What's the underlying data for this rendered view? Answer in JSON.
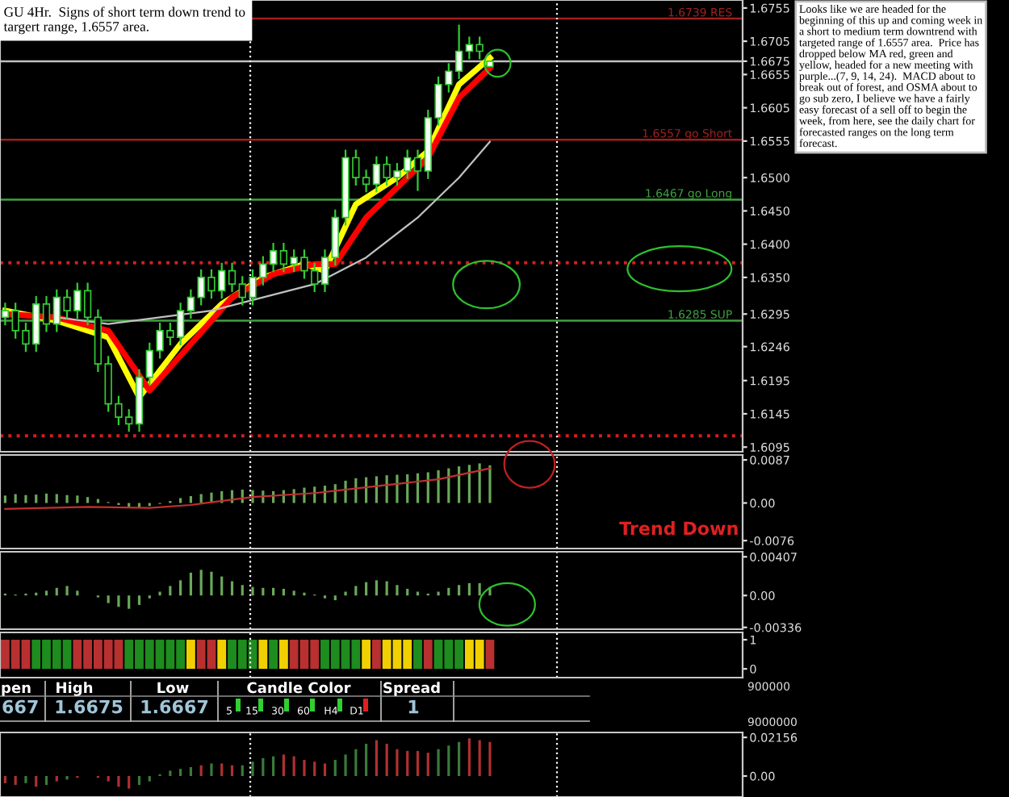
{
  "chart_data": [
    {
      "type": "candlestick",
      "categories": [
        null,
        null,
        null,
        null,
        null,
        null,
        null,
        null,
        null,
        null,
        null,
        null,
        null,
        null,
        null,
        null,
        null,
        null,
        null,
        null,
        null,
        null,
        null,
        null,
        null,
        null,
        null,
        null,
        null,
        null,
        null,
        null,
        null,
        null,
        null,
        null,
        null,
        null,
        null,
        null,
        null,
        null,
        null,
        null,
        null,
        null,
        null,
        null,
        null,
        null,
        null,
        null,
        null,
        null,
        null,
        null,
        null,
        null,
        null,
        null,
        null,
        null,
        null,
        null,
        null,
        null,
        null,
        null,
        null,
        null,
        null,
        null
      ],
      "ohlc": [
        [
          1.629,
          1.6312,
          1.6278,
          1.63
        ],
        [
          1.63,
          1.6312,
          1.6258,
          1.627
        ],
        [
          1.627,
          1.6282,
          1.6238,
          1.625
        ],
        [
          1.625,
          1.6322,
          1.6238,
          1.631
        ],
        [
          1.631,
          1.6322,
          1.6268,
          1.628
        ],
        [
          1.628,
          1.6332,
          1.6268,
          1.632
        ],
        [
          1.632,
          1.6332,
          1.6288,
          1.63
        ],
        [
          1.63,
          1.6342,
          1.6288,
          1.633
        ],
        [
          1.633,
          1.6342,
          1.6278,
          1.629
        ],
        [
          1.629,
          1.6302,
          1.6208,
          1.622
        ],
        [
          1.622,
          1.6232,
          1.6148,
          1.616
        ],
        [
          1.616,
          1.6172,
          1.6128,
          1.614
        ],
        [
          1.614,
          1.6152,
          1.6118,
          1.613
        ],
        [
          1.613,
          1.6212,
          1.6118,
          1.62
        ],
        [
          1.62,
          1.6252,
          1.6188,
          1.624
        ],
        [
          1.624,
          1.6282,
          1.6228,
          1.627
        ],
        [
          1.627,
          1.6282,
          1.6248,
          1.626
        ],
        [
          1.626,
          1.6312,
          1.6248,
          1.63
        ],
        [
          1.63,
          1.6332,
          1.6288,
          1.632
        ],
        [
          1.632,
          1.6362,
          1.6308,
          1.635
        ],
        [
          1.635,
          1.6362,
          1.6318,
          1.633
        ],
        [
          1.633,
          1.6372,
          1.6318,
          1.636
        ],
        [
          1.636,
          1.6372,
          1.6328,
          1.634
        ],
        [
          1.634,
          1.6352,
          1.6308,
          1.632
        ],
        [
          1.632,
          1.6362,
          1.6308,
          1.635
        ],
        [
          1.635,
          1.6382,
          1.6338,
          1.637
        ],
        [
          1.637,
          1.6402,
          1.6358,
          1.639
        ],
        [
          1.639,
          1.6402,
          1.6358,
          1.637
        ],
        [
          1.637,
          1.6392,
          1.6358,
          1.638
        ],
        [
          1.638,
          1.6392,
          1.6348,
          1.636
        ],
        [
          1.636,
          1.6372,
          1.6328,
          1.634
        ],
        [
          1.634,
          1.6392,
          1.6328,
          1.638
        ],
        [
          1.638,
          1.6452,
          1.6368,
          1.644
        ],
        [
          1.644,
          1.6542,
          1.6428,
          1.653
        ],
        [
          1.653,
          1.6542,
          1.6488,
          1.65
        ],
        [
          1.65,
          1.6512,
          1.6478,
          1.649
        ],
        [
          1.649,
          1.6532,
          1.6478,
          1.652
        ],
        [
          1.652,
          1.6532,
          1.6488,
          1.65
        ],
        [
          1.65,
          1.6522,
          1.6488,
          1.651
        ],
        [
          1.651,
          1.6542,
          1.6498,
          1.653
        ],
        [
          1.653,
          1.6542,
          1.648,
          1.651
        ],
        [
          1.651,
          1.6602,
          1.6498,
          1.659
        ],
        [
          1.659,
          1.6652,
          1.6578,
          1.664
        ],
        [
          1.664,
          1.6672,
          1.6628,
          1.666
        ],
        [
          1.666,
          1.673,
          1.6648,
          1.669
        ],
        [
          1.669,
          1.6712,
          1.6678,
          1.67
        ],
        [
          1.67,
          1.6712,
          1.6678,
          1.669
        ],
        [
          1.6667,
          1.6675,
          1.6667,
          1.6675
        ],
        null,
        null,
        null,
        null,
        null,
        null,
        null,
        null,
        null,
        null,
        null,
        null,
        null,
        null,
        null,
        null,
        null,
        null,
        null,
        null,
        null,
        null,
        null,
        null
      ],
      "series": [
        {
          "type": "line",
          "color": "#ffff00",
          "values": [
            1.63,
            null,
            null,
            null,
            null,
            1.6285,
            null,
            null,
            null,
            null,
            1.626,
            null,
            null,
            1.617,
            null,
            null,
            null,
            1.625,
            null,
            null,
            null,
            1.631,
            null,
            null,
            null,
            1.635,
            null,
            null,
            null,
            1.637,
            null,
            1.636,
            null,
            null,
            1.646,
            null,
            null,
            null,
            1.65,
            null,
            null,
            1.654,
            null,
            null,
            1.664,
            null,
            null,
            1.668,
            null,
            null,
            null,
            null,
            null,
            null,
            null,
            null,
            null,
            null,
            null,
            null,
            null,
            null,
            null,
            null,
            null,
            null,
            null,
            null,
            null,
            null,
            null,
            null
          ]
        },
        {
          "type": "line",
          "color": "#ff0000",
          "values": [
            1.6295,
            null,
            null,
            null,
            null,
            1.629,
            null,
            null,
            null,
            null,
            1.627,
            null,
            null,
            null,
            1.618,
            null,
            null,
            null,
            1.625,
            null,
            null,
            null,
            1.632,
            null,
            null,
            null,
            1.6355,
            null,
            null,
            null,
            1.637,
            null,
            1.637,
            null,
            null,
            1.644,
            null,
            null,
            null,
            1.65,
            null,
            1.653,
            null,
            null,
            1.662,
            null,
            null,
            1.6665,
            null,
            null,
            null,
            null,
            null,
            null,
            null,
            null,
            null,
            null,
            null,
            null,
            null,
            null,
            null,
            null,
            null,
            null,
            null,
            null,
            null,
            null,
            null,
            null
          ]
        },
        {
          "type": "line",
          "color": "#c0c0c0",
          "values": [
            null,
            null,
            null,
            null,
            null,
            1.629,
            null,
            null,
            null,
            null,
            1.628,
            null,
            null,
            null,
            null,
            1.629,
            null,
            null,
            null,
            null,
            1.63,
            null,
            null,
            null,
            null,
            1.632,
            null,
            null,
            null,
            null,
            1.634,
            null,
            null,
            null,
            null,
            1.638,
            null,
            null,
            null,
            null,
            1.644,
            null,
            null,
            null,
            1.65,
            null,
            null,
            1.6554,
            null,
            null,
            null,
            null,
            null,
            null,
            null,
            null,
            null,
            null,
            null,
            null,
            null,
            null,
            null,
            null,
            null,
            null,
            null,
            null,
            null,
            null,
            null,
            null
          ]
        }
      ],
      "ylim": [
        1.6088,
        1.6767
      ],
      "yticks": [
        1.6755,
        1.6705,
        1.6675,
        1.6655,
        1.6605,
        1.6555,
        {
          "value": 1.65,
          "label": "1.6500"
        },
        {
          "value": 1.645,
          "label": "1.6450"
        },
        {
          "value": 1.64,
          "label": "1.6400"
        },
        {
          "value": 1.635,
          "label": "1.6350"
        },
        1.6295,
        1.6246,
        1.6195,
        1.6145,
        1.6095
      ],
      "ref_lines": [
        {
          "axis": "y",
          "value": 1.6739,
          "label": "1.6739 RES",
          "color": "#a02020"
        },
        {
          "axis": "y",
          "value": 1.6675,
          "label": null,
          "color": "#c0c0c0"
        },
        {
          "axis": "y",
          "value": 1.6557,
          "label": "1.6557 go Short",
          "color": "#a02020"
        },
        {
          "axis": "y",
          "value": 1.6467,
          "label": "1.6467 go Long",
          "color": "#40a040"
        },
        {
          "axis": "y",
          "value": 1.6372,
          "label": null,
          "color": "#d02020",
          "line_style": "dotted"
        },
        {
          "axis": "y",
          "value": 1.6285,
          "label": "1.6285 SUP",
          "color": "#40a040"
        },
        {
          "axis": "y",
          "value": 1.6112,
          "label": null,
          "color": "#d02020",
          "line_style": "dotted"
        }
      ],
      "annotations": [
        "GU 4Hr.  Signs of short term down trend to\ntargert range, 1.6557 area.",
        "Looks like we are headed for the\nbeginning of this up and coming week in\na short to medium term downtrend with\ntargeted range of 1.6557 area.  Price has\ndropped below MA red, green and\nyellow, headed for a new meeting with\npurple...(7, 9, 14, 24).  MACD about to\nbreak out of forest, and OSMA about to\ngo sub zero, I believe we have a fairly\neasy forecast of a sell off to begin the\nweek, from here, see the daily chart for\nforecasted ranges on the long term\nforecast."
      ]
    },
    {
      "type": "bar",
      "categories": [
        null,
        null,
        null,
        null,
        null,
        null,
        null,
        null,
        null,
        null,
        null,
        null,
        null,
        null,
        null,
        null,
        null,
        null,
        null,
        null,
        null,
        null,
        null,
        null,
        null,
        null,
        null,
        null,
        null,
        null,
        null,
        null,
        null,
        null,
        null,
        null,
        null,
        null,
        null,
        null,
        null,
        null,
        null,
        null,
        null,
        null,
        null,
        null,
        null,
        null,
        null,
        null,
        null,
        null,
        null,
        null,
        null,
        null,
        null,
        null,
        null,
        null,
        null,
        null,
        null,
        null,
        null,
        null,
        null,
        null,
        null,
        null
      ],
      "series": [
        {
          "type": "bar",
          "color": "#6aa85a",
          "values": [
            0.0015,
            0.0018,
            0.0016,
            0.0017,
            0.0019,
            0.0018,
            0.0016,
            0.0015,
            0.0012,
            0.0008,
            0.0002,
            -0.0004,
            -0.0008,
            -0.001,
            -0.0006,
            -0.0002,
            0.0004,
            0.001,
            0.0014,
            0.0018,
            0.0021,
            0.0024,
            0.0026,
            0.0027,
            0.0026,
            0.0025,
            0.0024,
            0.0026,
            0.0028,
            0.0031,
            0.0033,
            0.0035,
            0.0038,
            0.0045,
            0.005,
            0.0052,
            0.0054,
            0.0056,
            0.0057,
            0.0058,
            0.006,
            0.0062,
            0.0066,
            0.007,
            0.0074,
            0.0077,
            0.008,
            0.0076,
            null,
            null,
            null,
            null,
            null,
            null,
            null,
            null,
            null,
            null,
            null,
            null,
            null,
            null,
            null,
            null,
            null,
            null,
            null,
            null,
            null,
            null,
            null,
            null
          ]
        },
        {
          "type": "line",
          "color": "#c03030",
          "values": [
            -0.0012,
            null,
            null,
            null,
            null,
            null,
            null,
            null,
            -0.0008,
            null,
            null,
            null,
            null,
            null,
            -0.001,
            null,
            null,
            null,
            -0.0004,
            null,
            null,
            null,
            null,
            null,
            0.0012,
            null,
            null,
            null,
            null,
            null,
            0.002,
            null,
            null,
            null,
            null,
            null,
            0.0034,
            null,
            null,
            null,
            null,
            null,
            0.0048,
            null,
            null,
            null,
            null,
            0.007,
            null,
            null,
            null,
            null,
            null,
            null,
            null,
            null,
            null,
            null,
            null,
            null,
            null,
            null,
            null,
            null,
            null,
            null,
            null,
            null,
            null,
            null,
            null,
            null
          ]
        }
      ],
      "ylim": [
        -0.0092,
        0.0097
      ],
      "yticks": [
        0.0087,
        {
          "value": 0,
          "label": "0.00"
        },
        -0.0076
      ],
      "annotations": [
        "Trend Down"
      ]
    },
    {
      "type": "bar",
      "categories": [
        null,
        null,
        null,
        null,
        null,
        null,
        null,
        null,
        null,
        null,
        null,
        null,
        null,
        null,
        null,
        null,
        null,
        null,
        null,
        null,
        null,
        null,
        null,
        null,
        null,
        null,
        null,
        null,
        null,
        null,
        null,
        null,
        null,
        null,
        null,
        null,
        null,
        null,
        null,
        null,
        null,
        null,
        null,
        null,
        null,
        null,
        null,
        null,
        null,
        null,
        null,
        null,
        null,
        null,
        null,
        null,
        null,
        null,
        null,
        null,
        null,
        null,
        null,
        null,
        null,
        null,
        null,
        null,
        null,
        null,
        null,
        null
      ],
      "color": "#6aa85a",
      "values": [
        0.0002,
        0.0001,
        0.0002,
        0.0003,
        0.0005,
        0.0008,
        0.001,
        0.0005,
        0,
        -0.0002,
        -0.0008,
        -0.0012,
        -0.0014,
        -0.001,
        -0.0003,
        0.0004,
        0.001,
        0.0016,
        0.0024,
        0.0027,
        0.0025,
        0.002,
        0.0015,
        0.0011,
        0.0009,
        0.0008,
        0.0008,
        0.0007,
        0.0005,
        0.0003,
        0.0001,
        -0.0003,
        -0.0005,
        0.0004,
        0.001,
        0.0014,
        0.0016,
        0.0015,
        0.0011,
        0.0007,
        0.0004,
        0.0002,
        0.0004,
        0.0008,
        0.0011,
        0.0013,
        0.0013,
        0.0009,
        null,
        null,
        null,
        null,
        null,
        null,
        null,
        null,
        null,
        null,
        null,
        null,
        null,
        null,
        null,
        null,
        null,
        null,
        null,
        null,
        null,
        null,
        null,
        null
      ],
      "ylim": [
        -0.00355,
        0.0046
      ],
      "yticks": [
        0.00407,
        {
          "value": 0,
          "label": "0.00"
        },
        -0.00336
      ]
    },
    {
      "type": "bar",
      "categories": [
        null,
        null,
        null,
        null,
        null,
        null,
        null,
        null,
        null,
        null,
        null,
        null,
        null,
        null,
        null,
        null,
        null,
        null,
        null,
        null,
        null,
        null,
        null,
        null,
        null,
        null,
        null,
        null,
        null,
        null,
        null,
        null,
        null,
        null,
        null,
        null,
        null,
        null,
        null,
        null,
        null,
        null,
        null,
        null,
        null,
        null,
        null,
        null,
        null,
        null,
        null,
        null,
        null,
        null,
        null,
        null,
        null,
        null,
        null,
        null,
        null,
        null,
        null,
        null,
        null,
        null,
        null,
        null,
        null,
        null,
        null,
        null
      ],
      "values": [
        1,
        1,
        1,
        1,
        1,
        1,
        1,
        1,
        1,
        1,
        1,
        1,
        1,
        1,
        1,
        1,
        1,
        1,
        1,
        1,
        1,
        1,
        1,
        1,
        1,
        1,
        1,
        1,
        1,
        1,
        1,
        1,
        1,
        1,
        1,
        1,
        1,
        1,
        1,
        1,
        1,
        1,
        1,
        1,
        1,
        1,
        1,
        1,
        null,
        null,
        null,
        null,
        null,
        null,
        null,
        null,
        null,
        null,
        null,
        null,
        null,
        null,
        null,
        null,
        null,
        null,
        null,
        null,
        null,
        null,
        null,
        null
      ],
      "colors": [
        "#b83030",
        "#b83030",
        "#b83030",
        "#1e8c1e",
        "#1e8c1e",
        "#1e8c1e",
        "#1e8c1e",
        "#b83030",
        "#b83030",
        "#b83030",
        "#b83030",
        "#b83030",
        "#1e8c1e",
        "#1e8c1e",
        "#1e8c1e",
        "#1e8c1e",
        "#1e8c1e",
        "#1e8c1e",
        "#f0d000",
        "#b83030",
        "#b83030",
        "#f0d000",
        "#1e8c1e",
        "#1e8c1e",
        "#1e8c1e",
        "#f0d000",
        "#1e8c1e",
        "#f0d000",
        "#b83030",
        "#b83030",
        "#b83030",
        "#1e8c1e",
        "#1e8c1e",
        "#1e8c1e",
        "#1e8c1e",
        "#f0d000",
        "#b83030",
        "#f0d000",
        "#f0d000",
        "#f0d000",
        "#1e8c1e",
        "#b83030",
        "#1e8c1e",
        "#1e8c1e",
        "#1e8c1e",
        "#f0d000",
        "#f0d000",
        "#b83030",
        null,
        null,
        null,
        null,
        null,
        null,
        null,
        null,
        null,
        null,
        null,
        null,
        null,
        null,
        null,
        null,
        null,
        null,
        null,
        null,
        null,
        null,
        null,
        null
      ],
      "ylim": [
        -0.3,
        1.25
      ],
      "yticks": [
        1,
        0
      ]
    },
    {
      "type": "other",
      "annotations": [
        "pen",
        "High",
        "Low",
        "Candle Color",
        "Spread",
        "667",
        "1.6675",
        "1.6667",
        "1",
        "5",
        "15",
        "30",
        "60",
        "H4",
        "D1",
        "900000",
        "9000000"
      ]
    },
    {
      "type": "bar",
      "categories": [
        null,
        null,
        null,
        null,
        null,
        null,
        null,
        null,
        null,
        null,
        null,
        null,
        null,
        null,
        null,
        null,
        null,
        null,
        null,
        null,
        null,
        null,
        null,
        null,
        null,
        null,
        null,
        null,
        null,
        null,
        null,
        null,
        null,
        null,
        null,
        null,
        null,
        null,
        null,
        null,
        null,
        null,
        null,
        null,
        null,
        null,
        null,
        null,
        null,
        null,
        null,
        null,
        null,
        null,
        null,
        null,
        null,
        null,
        null,
        null,
        null,
        null,
        null,
        null,
        null,
        null,
        null,
        null,
        null,
        null,
        null,
        null
      ],
      "values": [
        -0.004,
        -0.005,
        -0.004,
        -0.006,
        -0.005,
        -0.003,
        -0.002,
        -0.001,
        0,
        -0.001,
        -0.003,
        -0.006,
        -0.007,
        -0.005,
        -0.003,
        0.001,
        0.003,
        0.004,
        0.005,
        0.006,
        0.007,
        0.007,
        0.006,
        0.006,
        0.008,
        0.01,
        0.011,
        0.012,
        0.011,
        0.009,
        0.008,
        0.007,
        0.009,
        0.012,
        0.015,
        0.018,
        0.02,
        0.018,
        0.015,
        0.014,
        0.014,
        0.013,
        0.015,
        0.017,
        0.019,
        0.021,
        0.02,
        0.019,
        null,
        null,
        null,
        null,
        null,
        null,
        null,
        null,
        null,
        null,
        null,
        null,
        null,
        null,
        null,
        null,
        null,
        null,
        null,
        null,
        null,
        null,
        null,
        null
      ],
      "colors": [
        "#b03030",
        "#b03030",
        "#3a7a3a",
        "#b03030",
        "#3a7a3a",
        "#b03030",
        "#3a7a3a",
        "#b03030",
        "#3a7a3a",
        "#b03030",
        "#b03030",
        "#b03030",
        "#b03030",
        "#3a7a3a",
        "#3a7a3a",
        "#3a7a3a",
        "#3a7a3a",
        "#3a7a3a",
        "#3a7a3a",
        "#b03030",
        "#3a7a3a",
        "#b03030",
        "#b03030",
        "#3a7a3a",
        "#3a7a3a",
        "#3a7a3a",
        "#3a7a3a",
        "#b03030",
        "#b03030",
        "#b03030",
        "#b03030",
        "#b03030",
        "#3a7a3a",
        "#3a7a3a",
        "#3a7a3a",
        "#3a7a3a",
        "#b03030",
        "#b03030",
        "#b03030",
        "#b03030",
        "#b03030",
        "#b03030",
        "#3a7a3a",
        "#3a7a3a",
        "#3a7a3a",
        "#b03030",
        "#b03030",
        "#b03030",
        null,
        null,
        null,
        null,
        null,
        null,
        null,
        null,
        null,
        null,
        null,
        null,
        null,
        null,
        null,
        null,
        null,
        null,
        null,
        null,
        null,
        null,
        null,
        null
      ],
      "ylim": [
        -0.0117,
        0.0243
      ],
      "yticks": [
        0.02156,
        {
          "value": 0,
          "label": "0.00"
        }
      ]
    }
  ]
}
